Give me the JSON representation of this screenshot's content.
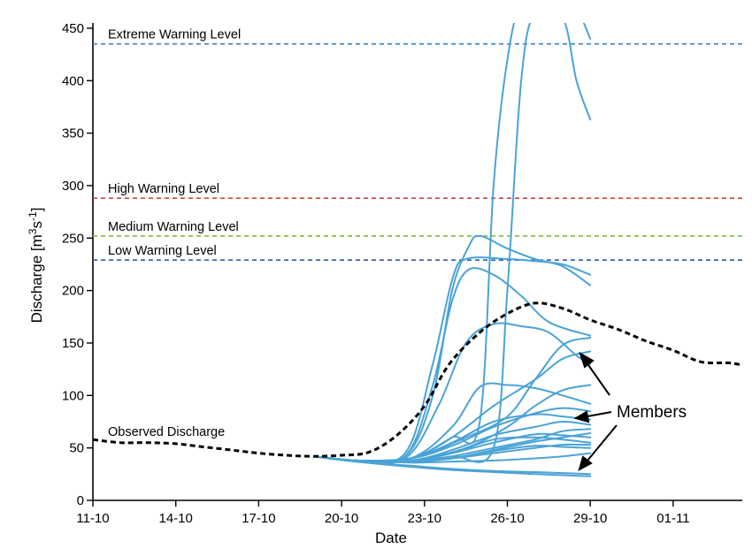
{
  "chart_data": {
    "type": "line",
    "xlabel": "Date",
    "ylabel_main": "Discharge [m",
    "ylabel_sup1": "3",
    "ylabel_mid": "s",
    "ylabel_sup2": "-1",
    "ylabel_end": "]",
    "x_ticks": [
      "11-10",
      "14-10",
      "17-10",
      "20-10",
      "23-10",
      "26-10",
      "29-10",
      "01-11"
    ],
    "x_range_days": [
      0,
      23.5
    ],
    "ylim": [
      0,
      455
    ],
    "y_ticks": [
      0,
      50,
      100,
      150,
      200,
      250,
      300,
      350,
      400,
      450
    ],
    "reference_lines": [
      {
        "label": "Extreme Warning Level",
        "value": 435,
        "color": "#3a7fc4"
      },
      {
        "label": "High Warning Level",
        "value": 288,
        "color": "#d04a3a"
      },
      {
        "label": "Medium Warning Level",
        "value": 252,
        "color": "#7cc142"
      },
      {
        "label": "Low Warning Level",
        "value": 229,
        "color": "#2e5fb0"
      }
    ],
    "observed": {
      "label": "Observed Discharge",
      "color": "#000000",
      "points": [
        [
          0,
          58
        ],
        [
          1,
          55
        ],
        [
          2,
          55
        ],
        [
          3,
          54
        ],
        [
          4,
          51
        ],
        [
          5,
          48
        ],
        [
          6,
          45
        ],
        [
          7,
          43
        ],
        [
          8,
          42
        ],
        [
          9,
          43
        ],
        [
          10,
          46
        ],
        [
          11,
          62
        ],
        [
          12,
          90
        ],
        [
          12.9,
          130
        ],
        [
          14,
          160
        ],
        [
          15,
          178
        ],
        [
          16,
          188
        ],
        [
          17,
          183
        ],
        [
          18,
          172
        ],
        [
          19,
          163
        ],
        [
          20,
          152
        ],
        [
          21,
          143
        ],
        [
          22,
          132
        ],
        [
          23,
          131
        ],
        [
          23.5,
          129
        ]
      ]
    },
    "members_label": "Members",
    "members_color": "#4aa3d6",
    "members": [
      {
        "values": [
          [
            8,
            42
          ],
          [
            9.5,
            38
          ],
          [
            11.3,
            42
          ],
          [
            12.3,
            100
          ],
          [
            13,
            200
          ],
          [
            13.6,
            242
          ],
          [
            14,
            252
          ],
          [
            15,
            240
          ],
          [
            16,
            230
          ],
          [
            17,
            223
          ],
          [
            18,
            205
          ]
        ]
      },
      {
        "values": [
          [
            8,
            42
          ],
          [
            9.5,
            38
          ],
          [
            11.3,
            45
          ],
          [
            12.3,
            130
          ],
          [
            13,
            210
          ],
          [
            13.5,
            230
          ],
          [
            15,
            230
          ],
          [
            16,
            228
          ],
          [
            17,
            225
          ],
          [
            18,
            215
          ]
        ]
      },
      {
        "values": [
          [
            8,
            42
          ],
          [
            9.5,
            38
          ],
          [
            11.3,
            42
          ],
          [
            12.3,
            110
          ],
          [
            13,
            190
          ],
          [
            13.6,
            220
          ],
          [
            14.5,
            215
          ],
          [
            15.5,
            195
          ],
          [
            16.5,
            170
          ],
          [
            18,
            157
          ]
        ]
      },
      {
        "values": [
          [
            8,
            42
          ],
          [
            9.5,
            38
          ],
          [
            11.3,
            40
          ],
          [
            12.5,
            90
          ],
          [
            13.5,
            150
          ],
          [
            14.5,
            168
          ],
          [
            15.5,
            166
          ],
          [
            16.5,
            160
          ],
          [
            17.5,
            138
          ],
          [
            18,
            130
          ]
        ]
      },
      {
        "values": [
          [
            8,
            42
          ],
          [
            9.5,
            38
          ],
          [
            11.5,
            40
          ],
          [
            13,
            60
          ],
          [
            14,
            75
          ],
          [
            14.5,
            300
          ],
          [
            15,
            420
          ],
          [
            15.5,
            470
          ],
          [
            16.5,
            470
          ],
          [
            17.5,
            465
          ],
          [
            18,
            440
          ]
        ]
      },
      {
        "values": [
          [
            8,
            42
          ],
          [
            9.5,
            38
          ],
          [
            11.5,
            38
          ],
          [
            13,
            42
          ],
          [
            14.5,
            50
          ],
          [
            15,
            200
          ],
          [
            15.5,
            400
          ],
          [
            16,
            465
          ],
          [
            17,
            460
          ],
          [
            17.5,
            400
          ],
          [
            18,
            363
          ]
        ]
      },
      {
        "values": [
          [
            8,
            42
          ],
          [
            9.5,
            38
          ],
          [
            11.5,
            40
          ],
          [
            13,
            70
          ],
          [
            14,
            108
          ],
          [
            15,
            110
          ],
          [
            16,
            107
          ],
          [
            17,
            100
          ],
          [
            18,
            92
          ]
        ]
      },
      {
        "values": [
          [
            8,
            42
          ],
          [
            9.5,
            38
          ],
          [
            11.5,
            40
          ],
          [
            13,
            60
          ],
          [
            14.5,
            90
          ],
          [
            16,
            115
          ],
          [
            17,
            135
          ],
          [
            18,
            142
          ]
        ]
      },
      {
        "values": [
          [
            8,
            42
          ],
          [
            9.5,
            38
          ],
          [
            11.5,
            40
          ],
          [
            13.5,
            60
          ],
          [
            15,
            80
          ],
          [
            16,
            115
          ],
          [
            17,
            148
          ],
          [
            18,
            155
          ]
        ]
      },
      {
        "values": [
          [
            8,
            42
          ],
          [
            9.5,
            38
          ],
          [
            11.5,
            38
          ],
          [
            13.5,
            50
          ],
          [
            15,
            70
          ],
          [
            16,
            90
          ],
          [
            17,
            105
          ],
          [
            18,
            110
          ]
        ]
      },
      {
        "values": [
          [
            8,
            42
          ],
          [
            9.5,
            38
          ],
          [
            11.5,
            40
          ],
          [
            13,
            55
          ],
          [
            14.5,
            75
          ],
          [
            16,
            82
          ],
          [
            17,
            80
          ],
          [
            18,
            77
          ]
        ]
      },
      {
        "values": [
          [
            8,
            42
          ],
          [
            9.5,
            38
          ],
          [
            11.5,
            40
          ],
          [
            13,
            52
          ],
          [
            14.5,
            70
          ],
          [
            16,
            83
          ],
          [
            17,
            88
          ],
          [
            18,
            85
          ]
        ]
      },
      {
        "values": [
          [
            8,
            42
          ],
          [
            9.5,
            38
          ],
          [
            11.5,
            38
          ],
          [
            13,
            48
          ],
          [
            14.5,
            62
          ],
          [
            16,
            70
          ],
          [
            17,
            75
          ],
          [
            18,
            72
          ]
        ]
      },
      {
        "values": [
          [
            8,
            42
          ],
          [
            9.5,
            38
          ],
          [
            11.5,
            38
          ],
          [
            13,
            45
          ],
          [
            14.5,
            55
          ],
          [
            16,
            63
          ],
          [
            17,
            62
          ],
          [
            18,
            60
          ]
        ]
      },
      {
        "values": [
          [
            8,
            42
          ],
          [
            9.5,
            38
          ],
          [
            11.5,
            38
          ],
          [
            13,
            45
          ],
          [
            14.5,
            58
          ],
          [
            16,
            60
          ],
          [
            17,
            58
          ],
          [
            18,
            55
          ]
        ]
      },
      {
        "values": [
          [
            8,
            42
          ],
          [
            9.5,
            38
          ],
          [
            11.5,
            37
          ],
          [
            13,
            42
          ],
          [
            14.5,
            50
          ],
          [
            16,
            58
          ],
          [
            17,
            66
          ],
          [
            18,
            68
          ]
        ]
      },
      {
        "values": [
          [
            8,
            42
          ],
          [
            9.5,
            38
          ],
          [
            11.5,
            37
          ],
          [
            13,
            40
          ],
          [
            14.5,
            48
          ],
          [
            16,
            56
          ],
          [
            17,
            60
          ],
          [
            18,
            64
          ]
        ]
      },
      {
        "values": [
          [
            8,
            42
          ],
          [
            9.5,
            38
          ],
          [
            11.5,
            37
          ],
          [
            13,
            40
          ],
          [
            14.5,
            45
          ],
          [
            16,
            50
          ],
          [
            17,
            53
          ],
          [
            18,
            53
          ]
        ]
      },
      {
        "values": [
          [
            8,
            42
          ],
          [
            9.5,
            38
          ],
          [
            11.5,
            37
          ],
          [
            13,
            40
          ],
          [
            14.5,
            47
          ],
          [
            16,
            52
          ],
          [
            17,
            51
          ],
          [
            18,
            50
          ]
        ]
      },
      {
        "values": [
          [
            8,
            42
          ],
          [
            9.5,
            38
          ],
          [
            11.5,
            36
          ],
          [
            13,
            37
          ],
          [
            14.5,
            38
          ],
          [
            16,
            40
          ],
          [
            17,
            42
          ],
          [
            18,
            45
          ]
        ]
      },
      {
        "values": [
          [
            8,
            42
          ],
          [
            9.5,
            37
          ],
          [
            11.5,
            33
          ],
          [
            13,
            30
          ],
          [
            14.5,
            28
          ],
          [
            16,
            27
          ],
          [
            17,
            26
          ],
          [
            18,
            25
          ]
        ]
      },
      {
        "values": [
          [
            8,
            42
          ],
          [
            9.5,
            37
          ],
          [
            11.5,
            32
          ],
          [
            13,
            29
          ],
          [
            14.5,
            27
          ],
          [
            16,
            25
          ],
          [
            17,
            24
          ],
          [
            18,
            23
          ]
        ]
      }
    ]
  }
}
